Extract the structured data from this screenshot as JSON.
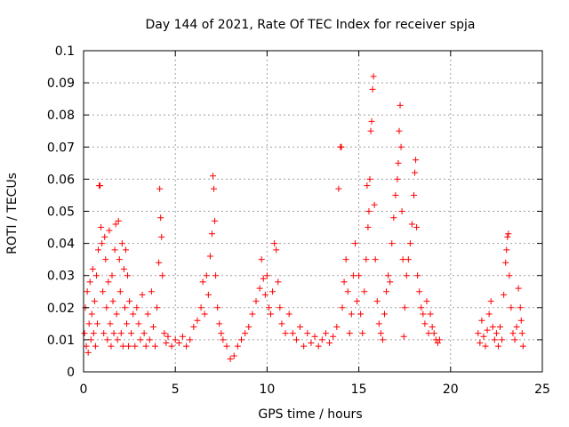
{
  "chart_data": {
    "type": "scatter",
    "title": "Day 144 of 2021, Rate Of TEC Index for receiver spja",
    "xlabel": "GPS time / hours",
    "ylabel": "ROTI / TECUs",
    "xlim": [
      0,
      25
    ],
    "ylim": [
      0,
      0.1
    ],
    "x_ticks": [
      "0",
      "5",
      "10",
      "15",
      "20",
      "25"
    ],
    "y_ticks": [
      "0",
      "0.01",
      "0.02",
      "0.03",
      "0.04",
      "0.05",
      "0.06",
      "0.07",
      "0.08",
      "0.09",
      "0.1"
    ],
    "grid": true,
    "marker": "plus",
    "marker_color": "#ff0000",
    "series": [
      {
        "points": [
          [
            0.05,
            0.012
          ],
          [
            0.1,
            0.02
          ],
          [
            0.15,
            0.008
          ],
          [
            0.2,
            0.025
          ],
          [
            0.25,
            0.006
          ],
          [
            0.3,
            0.015
          ],
          [
            0.35,
            0.028
          ],
          [
            0.4,
            0.01
          ],
          [
            0.45,
            0.018
          ],
          [
            0.5,
            0.032
          ],
          [
            0.55,
            0.012
          ],
          [
            0.6,
            0.022
          ],
          [
            0.65,
            0.008
          ],
          [
            0.7,
            0.03
          ],
          [
            0.75,
            0.015
          ],
          [
            0.8,
            0.038
          ],
          [
            0.85,
            0.058
          ],
          [
            0.9,
            0.058
          ],
          [
            0.95,
            0.045
          ],
          [
            1.0,
            0.04
          ],
          [
            1.05,
            0.025
          ],
          [
            1.1,
            0.012
          ],
          [
            1.15,
            0.042
          ],
          [
            1.2,
            0.035
          ],
          [
            1.25,
            0.02
          ],
          [
            1.3,
            0.01
          ],
          [
            1.35,
            0.028
          ],
          [
            1.4,
            0.044
          ],
          [
            1.45,
            0.015
          ],
          [
            1.5,
            0.008
          ],
          [
            1.55,
            0.03
          ],
          [
            1.6,
            0.022
          ],
          [
            1.65,
            0.012
          ],
          [
            1.7,
            0.038
          ],
          [
            1.75,
            0.046
          ],
          [
            1.8,
            0.018
          ],
          [
            1.85,
            0.01
          ],
          [
            1.9,
            0.047
          ],
          [
            1.95,
            0.035
          ],
          [
            2.0,
            0.025
          ],
          [
            2.05,
            0.012
          ],
          [
            2.1,
            0.04
          ],
          [
            2.15,
            0.008
          ],
          [
            2.2,
            0.032
          ],
          [
            2.25,
            0.02
          ],
          [
            2.3,
            0.038
          ],
          [
            2.35,
            0.015
          ],
          [
            2.4,
            0.03
          ],
          [
            2.45,
            0.008
          ],
          [
            2.5,
            0.022
          ],
          [
            2.6,
            0.012
          ],
          [
            2.7,
            0.018
          ],
          [
            2.8,
            0.008
          ],
          [
            2.9,
            0.02
          ],
          [
            3.0,
            0.015
          ],
          [
            3.1,
            0.01
          ],
          [
            3.2,
            0.024
          ],
          [
            3.3,
            0.012
          ],
          [
            3.4,
            0.008
          ],
          [
            3.5,
            0.018
          ],
          [
            3.6,
            0.01
          ],
          [
            3.7,
            0.025
          ],
          [
            3.8,
            0.014
          ],
          [
            3.9,
            0.008
          ],
          [
            4.0,
            0.02
          ],
          [
            4.1,
            0.034
          ],
          [
            4.15,
            0.057
          ],
          [
            4.2,
            0.048
          ],
          [
            4.25,
            0.042
          ],
          [
            4.3,
            0.03
          ],
          [
            4.4,
            0.012
          ],
          [
            4.5,
            0.009
          ],
          [
            4.6,
            0.011
          ],
          [
            4.8,
            0.008
          ],
          [
            5.0,
            0.01
          ],
          [
            5.2,
            0.009
          ],
          [
            5.4,
            0.011
          ],
          [
            5.6,
            0.008
          ],
          [
            5.8,
            0.01
          ],
          [
            6.0,
            0.014
          ],
          [
            6.2,
            0.016
          ],
          [
            6.4,
            0.02
          ],
          [
            6.5,
            0.028
          ],
          [
            6.6,
            0.018
          ],
          [
            6.7,
            0.03
          ],
          [
            6.8,
            0.024
          ],
          [
            6.9,
            0.036
          ],
          [
            7.0,
            0.043
          ],
          [
            7.05,
            0.061
          ],
          [
            7.1,
            0.057
          ],
          [
            7.15,
            0.047
          ],
          [
            7.2,
            0.03
          ],
          [
            7.3,
            0.02
          ],
          [
            7.4,
            0.015
          ],
          [
            7.5,
            0.012
          ],
          [
            7.6,
            0.01
          ],
          [
            7.8,
            0.008
          ],
          [
            8.0,
            0.004
          ],
          [
            8.2,
            0.005
          ],
          [
            8.4,
            0.008
          ],
          [
            8.6,
            0.01
          ],
          [
            8.8,
            0.012
          ],
          [
            9.0,
            0.014
          ],
          [
            9.2,
            0.018
          ],
          [
            9.4,
            0.022
          ],
          [
            9.6,
            0.026
          ],
          [
            9.7,
            0.035
          ],
          [
            9.8,
            0.029
          ],
          [
            9.9,
            0.024
          ],
          [
            10.0,
            0.03
          ],
          [
            10.1,
            0.02
          ],
          [
            10.2,
            0.018
          ],
          [
            10.3,
            0.025
          ],
          [
            10.4,
            0.04
          ],
          [
            10.5,
            0.038
          ],
          [
            10.6,
            0.028
          ],
          [
            10.7,
            0.02
          ],
          [
            10.8,
            0.015
          ],
          [
            11.0,
            0.012
          ],
          [
            11.2,
            0.018
          ],
          [
            11.4,
            0.012
          ],
          [
            11.6,
            0.01
          ],
          [
            11.8,
            0.014
          ],
          [
            12.0,
            0.008
          ],
          [
            12.2,
            0.012
          ],
          [
            12.4,
            0.009
          ],
          [
            12.6,
            0.011
          ],
          [
            12.8,
            0.008
          ],
          [
            13.0,
            0.01
          ],
          [
            13.2,
            0.012
          ],
          [
            13.4,
            0.009
          ],
          [
            13.6,
            0.011
          ],
          [
            13.8,
            0.014
          ],
          [
            13.9,
            0.057
          ],
          [
            14.0,
            0.07
          ],
          [
            14.05,
            0.07
          ],
          [
            14.1,
            0.02
          ],
          [
            14.2,
            0.028
          ],
          [
            14.3,
            0.035
          ],
          [
            14.4,
            0.025
          ],
          [
            14.5,
            0.012
          ],
          [
            14.6,
            0.018
          ],
          [
            14.7,
            0.03
          ],
          [
            14.8,
            0.04
          ],
          [
            14.9,
            0.022
          ],
          [
            15.0,
            0.03
          ],
          [
            15.1,
            0.018
          ],
          [
            15.2,
            0.012
          ],
          [
            15.3,
            0.025
          ],
          [
            15.4,
            0.035
          ],
          [
            15.45,
            0.058
          ],
          [
            15.5,
            0.045
          ],
          [
            15.55,
            0.05
          ],
          [
            15.6,
            0.06
          ],
          [
            15.65,
            0.075
          ],
          [
            15.7,
            0.078
          ],
          [
            15.75,
            0.088
          ],
          [
            15.8,
            0.092
          ],
          [
            15.85,
            0.052
          ],
          [
            15.9,
            0.035
          ],
          [
            16.0,
            0.022
          ],
          [
            16.1,
            0.015
          ],
          [
            16.2,
            0.012
          ],
          [
            16.3,
            0.01
          ],
          [
            16.4,
            0.018
          ],
          [
            16.5,
            0.025
          ],
          [
            16.6,
            0.03
          ],
          [
            16.7,
            0.028
          ],
          [
            16.8,
            0.04
          ],
          [
            16.9,
            0.048
          ],
          [
            17.0,
            0.055
          ],
          [
            17.1,
            0.06
          ],
          [
            17.15,
            0.065
          ],
          [
            17.2,
            0.075
          ],
          [
            17.25,
            0.083
          ],
          [
            17.3,
            0.07
          ],
          [
            17.35,
            0.05
          ],
          [
            17.4,
            0.035
          ],
          [
            17.45,
            0.011
          ],
          [
            17.5,
            0.02
          ],
          [
            17.6,
            0.03
          ],
          [
            17.7,
            0.035
          ],
          [
            17.8,
            0.04
          ],
          [
            17.9,
            0.046
          ],
          [
            18.0,
            0.055
          ],
          [
            18.05,
            0.062
          ],
          [
            18.1,
            0.066
          ],
          [
            18.15,
            0.045
          ],
          [
            18.2,
            0.03
          ],
          [
            18.3,
            0.025
          ],
          [
            18.4,
            0.02
          ],
          [
            18.5,
            0.018
          ],
          [
            18.6,
            0.015
          ],
          [
            18.7,
            0.022
          ],
          [
            18.8,
            0.012
          ],
          [
            18.9,
            0.018
          ],
          [
            19.0,
            0.014
          ],
          [
            19.1,
            0.012
          ],
          [
            19.2,
            0.01
          ],
          [
            19.3,
            0.009
          ],
          [
            19.4,
            0.01
          ],
          [
            21.5,
            0.012
          ],
          [
            21.6,
            0.009
          ],
          [
            21.7,
            0.016
          ],
          [
            21.8,
            0.011
          ],
          [
            21.9,
            0.008
          ],
          [
            22.0,
            0.013
          ],
          [
            22.1,
            0.018
          ],
          [
            22.2,
            0.022
          ],
          [
            22.3,
            0.014
          ],
          [
            22.4,
            0.01
          ],
          [
            22.5,
            0.012
          ],
          [
            22.6,
            0.008
          ],
          [
            22.7,
            0.014
          ],
          [
            22.8,
            0.01
          ],
          [
            22.9,
            0.024
          ],
          [
            23.0,
            0.034
          ],
          [
            23.05,
            0.038
          ],
          [
            23.1,
            0.042
          ],
          [
            23.15,
            0.043
          ],
          [
            23.2,
            0.03
          ],
          [
            23.3,
            0.02
          ],
          [
            23.4,
            0.012
          ],
          [
            23.5,
            0.01
          ],
          [
            23.6,
            0.014
          ],
          [
            23.7,
            0.026
          ],
          [
            23.8,
            0.02
          ],
          [
            23.85,
            0.016
          ],
          [
            23.9,
            0.012
          ],
          [
            23.95,
            0.008
          ]
        ]
      }
    ]
  }
}
